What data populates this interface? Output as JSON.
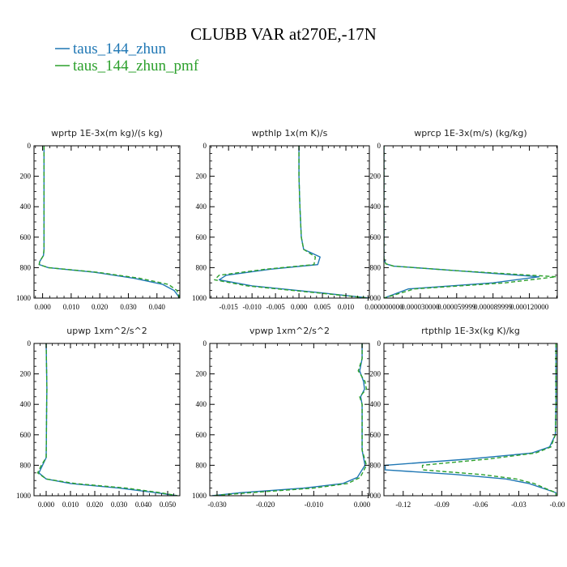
{
  "figure": {
    "title": "CLUBB VAR at270E,-17N",
    "legend": [
      {
        "label": "taus_144_zhun",
        "color": "#1f77b4",
        "dash": "solid"
      },
      {
        "label": "taus_144_zhun_pmf",
        "color": "#2ca02c",
        "dash": "dashed"
      }
    ]
  },
  "chart_data": [
    {
      "type": "line",
      "title": "wprtp  1E-3x(m kg)/(s kg)",
      "xlim": [
        -0.003,
        0.048
      ],
      "ylim": [
        1000,
        0
      ],
      "xticks": [
        0.0,
        0.01,
        0.02,
        0.03,
        0.04
      ],
      "xtick_labels": [
        "0.000",
        "0.010",
        "0.020",
        "0.030",
        "0.040"
      ],
      "yticks": [
        0,
        200,
        400,
        600,
        800,
        1000
      ],
      "ytick_labels": [
        "0",
        "200",
        "400",
        "600",
        "800",
        "1000"
      ],
      "series": [
        {
          "name": "taus_144_zhun",
          "x": [
            0.0005,
            0.0005,
            0.0005,
            0.0005,
            0.0005,
            0.0003,
            -0.001,
            -0.0012,
            0.002,
            0.018,
            0.032,
            0.042,
            0.046,
            0.048
          ],
          "y": [
            0,
            200,
            400,
            600,
            680,
            720,
            760,
            780,
            800,
            830,
            870,
            910,
            950,
            1000
          ]
        },
        {
          "name": "taus_144_zhun_pmf",
          "x": [
            0.0005,
            0.0005,
            0.0005,
            0.0005,
            0.0005,
            0.0003,
            -0.001,
            -0.0012,
            0.002,
            0.019,
            0.034,
            0.044,
            0.047,
            0.048
          ],
          "y": [
            0,
            200,
            400,
            600,
            680,
            720,
            760,
            780,
            800,
            830,
            870,
            910,
            950,
            1000
          ]
        }
      ]
    },
    {
      "type": "line",
      "title": "wpthlp  1x(m K)/s",
      "xlim": [
        -0.019,
        0.015
      ],
      "ylim": [
        1000,
        0
      ],
      "xticks": [
        -0.015,
        -0.01,
        -0.005,
        0.0,
        0.005,
        0.01
      ],
      "xtick_labels": [
        "-0.015",
        "-0.010",
        "-0.005",
        "0.000",
        "0.005",
        "0.010"
      ],
      "yticks": [
        0,
        200,
        400,
        600,
        800,
        1000
      ],
      "ytick_labels": [
        "0",
        "200",
        "400",
        "600",
        "800",
        "1000"
      ],
      "series": [
        {
          "name": "taus_144_zhun",
          "x": [
            0.0,
            0.0,
            0.0002,
            0.0005,
            0.001,
            0.0045,
            0.004,
            -0.006,
            -0.0155,
            -0.017,
            -0.01,
            0.003,
            0.015
          ],
          "y": [
            0,
            200,
            400,
            600,
            680,
            730,
            780,
            810,
            850,
            880,
            920,
            960,
            1000
          ]
        },
        {
          "name": "taus_144_zhun_pmf",
          "x": [
            0.0,
            0.0,
            0.0002,
            0.0005,
            0.001,
            0.0035,
            0.0032,
            -0.007,
            -0.017,
            -0.018,
            -0.011,
            0.002,
            0.015
          ],
          "y": [
            0,
            200,
            400,
            600,
            680,
            730,
            780,
            810,
            850,
            880,
            920,
            960,
            1000
          ]
        }
      ]
    },
    {
      "type": "line",
      "title": "wprcp  1E-3x(m/s) (kg/kg)",
      "xlim": [
        0.0,
        0.000143
      ],
      "ylim": [
        1000,
        0
      ],
      "xticks": [
        0.0,
        3e-05,
        6e-05,
        9e-05,
        0.00012
      ],
      "xtick_labels": [
        "0.000000000",
        "0.000030000",
        "0.000059999",
        "0.000089999",
        "0.000120000"
      ],
      "yticks": [
        0,
        200,
        400,
        600,
        800,
        1000
      ],
      "ytick_labels": [
        "0",
        "200",
        "400",
        "600",
        "800",
        "1000"
      ],
      "series": [
        {
          "name": "taus_144_zhun",
          "x": [
            0.0,
            0.0,
            0.0,
            0.0,
            0.0,
            1.5e-06,
            8e-06,
            6e-05,
            0.000128,
            9e-05,
            2e-05,
            0.0
          ],
          "y": [
            0,
            200,
            400,
            600,
            740,
            775,
            790,
            820,
            860,
            900,
            940,
            1000
          ]
        },
        {
          "name": "taus_144_zhun_pmf",
          "x": [
            0.0,
            0.0,
            0.0,
            0.0,
            0.0,
            1.5e-06,
            8e-06,
            6e-05,
            0.000142,
            0.0001,
            2.5e-05,
            0.0
          ],
          "y": [
            0,
            200,
            400,
            600,
            740,
            775,
            790,
            820,
            860,
            900,
            940,
            1000
          ]
        }
      ]
    },
    {
      "type": "line",
      "title": "upwp  1xm^2/s^2",
      "xlim": [
        -0.005,
        0.055
      ],
      "ylim": [
        1000,
        0
      ],
      "xticks": [
        0.0,
        0.01,
        0.02,
        0.03,
        0.04,
        0.05
      ],
      "xtick_labels": [
        "0.000",
        "0.010",
        "0.020",
        "0.030",
        "0.040",
        "0.050"
      ],
      "yticks": [
        0,
        200,
        400,
        600,
        800,
        1000
      ],
      "ytick_labels": [
        "0",
        "200",
        "400",
        "600",
        "800",
        "1000"
      ],
      "series": [
        {
          "name": "taus_144_zhun",
          "x": [
            0.0,
            0.0002,
            0.0003,
            0.0002,
            0.0001,
            0.0,
            -0.0015,
            -0.003,
            0.0,
            0.01,
            0.03,
            0.045,
            0.054
          ],
          "y": [
            0,
            200,
            300,
            400,
            600,
            750,
            800,
            850,
            890,
            920,
            950,
            980,
            1000
          ]
        },
        {
          "name": "taus_144_zhun_pmf",
          "x": [
            0.0,
            0.0002,
            0.0003,
            0.0002,
            0.0001,
            0.0,
            -0.002,
            -0.0035,
            0.0,
            0.012,
            0.033,
            0.047,
            0.054
          ],
          "y": [
            0,
            200,
            300,
            400,
            600,
            750,
            800,
            850,
            890,
            920,
            950,
            980,
            1000
          ]
        }
      ]
    },
    {
      "type": "line",
      "title": "vpwp  1xm^2/s^2",
      "xlim": [
        -0.0315,
        0.0015
      ],
      "ylim": [
        1000,
        0
      ],
      "xticks": [
        -0.03,
        -0.02,
        -0.01,
        0.0
      ],
      "xtick_labels": [
        "-0.030",
        "-0.020",
        "-0.010",
        "0.000"
      ],
      "yticks": [
        0,
        200,
        400,
        600,
        800,
        1000
      ],
      "ytick_labels": [
        "0",
        "200",
        "400",
        "600",
        "800",
        "1000"
      ],
      "series": [
        {
          "name": "taus_144_zhun",
          "x": [
            0.0,
            0.0,
            -0.0005,
            0.0003,
            0.0005,
            -0.0003,
            0.0,
            0.0,
            0.0006,
            -0.001,
            -0.004,
            -0.012,
            -0.025,
            -0.031
          ],
          "y": [
            0,
            100,
            180,
            250,
            300,
            350,
            400,
            700,
            800,
            880,
            920,
            950,
            980,
            1000
          ]
        },
        {
          "name": "taus_144_zhun_pmf",
          "x": [
            0.0,
            0.0,
            -0.0008,
            0.0006,
            0.0009,
            -0.0005,
            0.0,
            0.0,
            0.0009,
            -0.0004,
            -0.003,
            -0.01,
            -0.023,
            -0.031
          ],
          "y": [
            0,
            100,
            180,
            250,
            300,
            350,
            400,
            700,
            800,
            880,
            920,
            950,
            980,
            1000
          ]
        }
      ]
    },
    {
      "type": "line",
      "title": "rtpthlp  1E-3x(kg K)/kg",
      "xlim": [
        -0.135,
        0.0
      ],
      "ylim": [
        1000,
        0
      ],
      "xticks": [
        -0.12,
        -0.09,
        -0.06,
        -0.03,
        0.0
      ],
      "xtick_labels": [
        "-0.12",
        "-0.09",
        "-0.06",
        "-0.03",
        "-0.00"
      ],
      "yticks": [
        0,
        200,
        400,
        600,
        800,
        1000
      ],
      "ytick_labels": [
        "0",
        "200",
        "400",
        "600",
        "800",
        "1000"
      ],
      "series": [
        {
          "name": "taus_144_zhun",
          "x": [
            -0.001,
            -0.001,
            -0.001,
            -0.0015,
            -0.006,
            -0.02,
            -0.07,
            -0.134,
            -0.134,
            -0.08,
            -0.04,
            -0.022,
            -0.008,
            -0.001,
            -0.001
          ],
          "y": [
            0,
            200,
            400,
            600,
            680,
            720,
            760,
            800,
            830,
            860,
            890,
            920,
            960,
            980,
            1000
          ]
        },
        {
          "name": "taus_144_zhun_pmf",
          "x": [
            -0.001,
            -0.001,
            -0.001,
            -0.0015,
            -0.005,
            -0.017,
            -0.055,
            -0.105,
            -0.105,
            -0.06,
            -0.032,
            -0.018,
            -0.007,
            -0.001,
            -0.001
          ],
          "y": [
            0,
            200,
            400,
            600,
            680,
            720,
            760,
            800,
            830,
            860,
            890,
            920,
            960,
            980,
            1000
          ]
        }
      ]
    }
  ]
}
